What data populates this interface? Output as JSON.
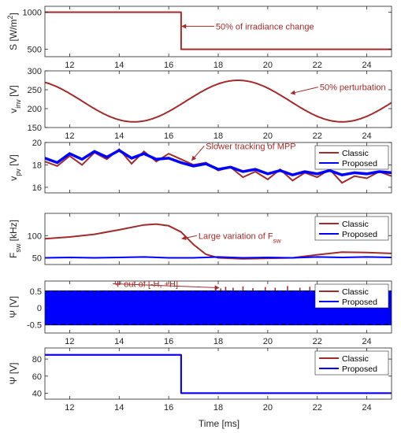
{
  "figure": {
    "xlabel": "Time [ms]",
    "colors": {
      "classic": "#a52a2a",
      "proposed": "#0000ff",
      "axis": "#262626"
    }
  },
  "chart_data": [
    {
      "id": "irradiance",
      "type": "line",
      "ylabel": "S [W/m²]",
      "xlim": [
        11,
        25
      ],
      "ylim": [
        400,
        1080
      ],
      "xticks": [
        12,
        14,
        16,
        18,
        20,
        22,
        24
      ],
      "show_xtick_labels": true,
      "yticks": [
        500,
        1000
      ],
      "legend": null,
      "series": [
        {
          "key": "classic",
          "x": [
            11,
            16.5,
            16.5,
            25
          ],
          "y": [
            1000,
            1000,
            500,
            500
          ]
        }
      ],
      "annotations": [
        {
          "text": "50% of irradiance change",
          "x": 17.9,
          "y": 810,
          "arrow_to": [
            16.5,
            810
          ]
        }
      ]
    },
    {
      "id": "vinv",
      "type": "line",
      "ylabel": "v_inv [V]",
      "xlim": [
        11,
        25
      ],
      "ylim": [
        150,
        300
      ],
      "xticks": [
        12,
        14,
        16,
        18,
        20,
        22,
        24
      ],
      "show_xtick_labels": true,
      "yticks": [
        150,
        200,
        250,
        300
      ],
      "legend": null,
      "sine": {
        "offset": 220,
        "amplitude": 55,
        "period_ms": 8.4,
        "trough_ms": 14.6
      },
      "annotations": [
        {
          "text": "50% perturbation",
          "x": 22.1,
          "y": 257,
          "arrow_to": [
            20.9,
            240
          ]
        }
      ]
    },
    {
      "id": "vpv",
      "type": "line",
      "ylabel": "v_pv [V]",
      "xlim": [
        11,
        25
      ],
      "ylim": [
        15.5,
        20
      ],
      "xticks": [
        12,
        14,
        16,
        18,
        20,
        22,
        24
      ],
      "show_xtick_labels": false,
      "yticks": [
        16,
        18,
        20
      ],
      "legend": {
        "position": "top-right",
        "entries": [
          "Classic",
          "Proposed"
        ]
      },
      "series": [
        {
          "key": "classic",
          "name": "Classic",
          "x": [
            11,
            11.5,
            12,
            12.5,
            13,
            13.5,
            14,
            14.5,
            15,
            15.5,
            16,
            16.5,
            17,
            17.5,
            18,
            18.5,
            19,
            19.5,
            20,
            20.5,
            21,
            21.5,
            22,
            22.5,
            23,
            23.5,
            24,
            24.5,
            25
          ],
          "y": [
            18.3,
            17.9,
            18.8,
            18.0,
            19.1,
            18.5,
            19.4,
            18.1,
            19.2,
            18.3,
            19.0,
            18.5,
            18.0,
            18.2,
            17.5,
            17.8,
            16.9,
            17.4,
            16.7,
            17.6,
            16.6,
            17.3,
            16.9,
            17.6,
            16.4,
            17.0,
            16.8,
            17.4,
            17.0
          ]
        },
        {
          "key": "proposed",
          "name": "Proposed",
          "x": [
            11,
            11.5,
            12,
            12.5,
            13,
            13.5,
            14,
            14.5,
            15,
            15.5,
            16,
            16.5,
            17,
            17.5,
            18,
            18.5,
            19,
            19.5,
            20,
            20.5,
            21,
            21.5,
            22,
            22.5,
            23,
            23.5,
            24,
            24.5,
            25
          ],
          "y": [
            18.6,
            18.2,
            19.0,
            18.5,
            19.2,
            18.7,
            19.3,
            18.6,
            19.0,
            18.5,
            18.6,
            18.2,
            17.9,
            18.1,
            17.6,
            17.8,
            17.4,
            17.6,
            17.2,
            17.5,
            17.1,
            17.4,
            17.2,
            17.5,
            17.1,
            17.3,
            17.2,
            17.4,
            17.3
          ]
        }
      ],
      "annotations": [
        {
          "text": "Slower tracking of MPP",
          "x": 17.5,
          "y": 19.7,
          "arrow_to": [
            16.9,
            18.4
          ]
        }
      ]
    },
    {
      "id": "fsw",
      "type": "line",
      "ylabel": "F_sw [kHz]",
      "xlim": [
        11,
        25
      ],
      "ylim": [
        35,
        150
      ],
      "xticks": [
        12,
        14,
        16,
        18,
        20,
        22,
        24
      ],
      "show_xtick_labels": false,
      "yticks": [
        50,
        100
      ],
      "legend": {
        "position": "top-right",
        "entries": [
          "Classic",
          "Proposed"
        ]
      },
      "series": [
        {
          "key": "classic",
          "name": "Classic",
          "x": [
            11,
            12,
            13,
            14,
            15,
            15.5,
            16,
            16.5,
            17,
            17.5,
            18,
            19,
            20,
            21,
            22,
            23,
            24,
            25
          ],
          "y": [
            93,
            97,
            103,
            113,
            124,
            126,
            122,
            108,
            80,
            58,
            50,
            48,
            49,
            50,
            57,
            63,
            62,
            60
          ]
        },
        {
          "key": "proposed",
          "name": "Proposed",
          "x": [
            11,
            12,
            13,
            14,
            15,
            16,
            17,
            18,
            19,
            20,
            21,
            22,
            23,
            24,
            25
          ],
          "y": [
            50,
            51,
            50,
            51,
            52,
            50,
            50,
            52,
            50,
            51,
            50,
            52,
            51,
            52,
            51
          ]
        }
      ],
      "annotations": [
        {
          "text": "Large variation of F_sw",
          "x": 17.2,
          "y": 100,
          "arrow_to": [
            16.5,
            93
          ]
        }
      ]
    },
    {
      "id": "psi",
      "type": "line",
      "ylabel": "Ψ [V]",
      "xlim": [
        11,
        25
      ],
      "ylim": [
        -0.75,
        0.8
      ],
      "xticks": [
        12,
        14,
        16,
        18,
        20,
        22,
        24
      ],
      "show_xtick_labels": true,
      "yticks": [
        -0.5,
        0,
        0.5
      ],
      "ytick_labels": [
        "-0.5",
        "0",
        "0.5"
      ],
      "band": {
        "lo": -0.52,
        "hi": 0.52
      },
      "thresholds": [
        0.5,
        -0.5
      ],
      "legend": {
        "position": "top-right",
        "entries": [
          "Classic",
          "Proposed"
        ]
      },
      "annotations": [
        {
          "text": "Ψ out of [-H, +H]",
          "x": 13.8,
          "y": 0.72,
          "arrow_to": [
            18,
            0.6
          ]
        }
      ]
    },
    {
      "id": "psi2",
      "type": "line",
      "ylabel": "Ψ [V]",
      "xlim": [
        11,
        25
      ],
      "ylim": [
        33,
        93
      ],
      "xticks": [
        12,
        14,
        16,
        18,
        20,
        22,
        24
      ],
      "show_xtick_labels": true,
      "yticks": [
        40,
        60,
        80
      ],
      "legend": {
        "position": "top-right",
        "entries": [
          "Classic",
          "Proposed"
        ]
      },
      "series": [
        {
          "key": "classic",
          "name": "Classic",
          "x": [
            11,
            16.5,
            16.5,
            25
          ],
          "y": [
            85,
            85,
            40,
            40
          ]
        },
        {
          "key": "proposed",
          "name": "Proposed",
          "x": [
            11,
            16.5,
            16.5,
            25
          ],
          "y": [
            85,
            85,
            40,
            40
          ]
        }
      ]
    }
  ]
}
